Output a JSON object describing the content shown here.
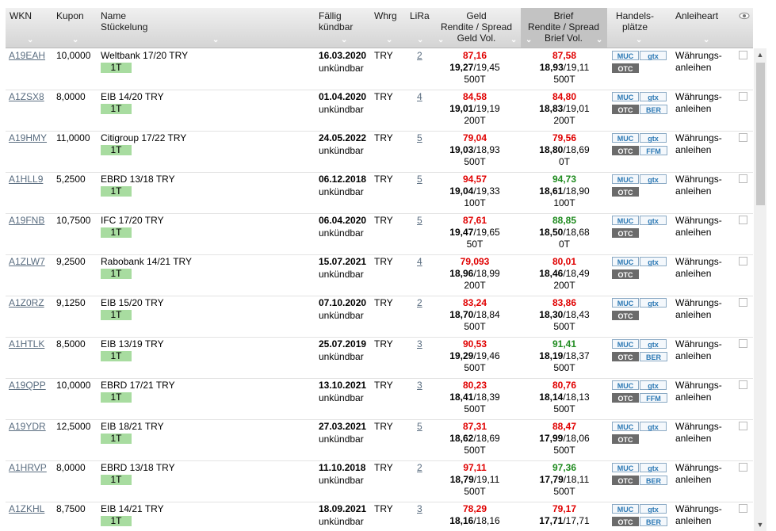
{
  "header": {
    "wkn": "WKN",
    "kupon": "Kupon",
    "name_l1": "Name",
    "name_l2": "Stückelung",
    "faellig_l1": "Fällig",
    "faellig_l2": "kündbar",
    "whrg": "Whrg",
    "lira": "LiRa",
    "geld_l1": "Geld",
    "geld_l2": "Rendite / Spread",
    "geld_l3": "Geld Vol.",
    "brief_l1": "Brief",
    "brief_l2": "Rendite / Spread",
    "brief_l3": "Brief Vol.",
    "handel_l1": "Handels-",
    "handel_l2": "plätze",
    "art": "Anleiheart",
    "chevron": "⌄",
    "sort_icon": "chevron-down-icon"
  },
  "colors": {
    "red": "#e00000",
    "green": "#1f8b1f",
    "badge": "#a8dca0",
    "header_active": "#c3c3c3"
  },
  "rows": [
    {
      "wkn": "A19EAH",
      "kupon": "10,0000",
      "name": "Weltbank 17/20 TRY",
      "stueck": "1T",
      "faellig": "16.03.2020",
      "kuend": "unkündbar",
      "whrg": "TRY",
      "lira": "2",
      "geld": "87,16",
      "geld_col": "red",
      "geld_r": "19,27",
      "geld_s": "/19,45",
      "geld_v": "500T",
      "brief": "87,58",
      "brief_col": "red",
      "brief_r": "18,93",
      "brief_s": "/19,11",
      "brief_v": "500T",
      "m1": "MUC",
      "m2": "gtx",
      "m3": "OTC",
      "m4": "",
      "art1": "Währungs-",
      "art2": "anleihen"
    },
    {
      "wkn": "A1ZSX8",
      "kupon": "8,0000",
      "name": "EIB 14/20 TRY",
      "stueck": "1T",
      "faellig": "01.04.2020",
      "kuend": "unkündbar",
      "whrg": "TRY",
      "lira": "4",
      "geld": "84,58",
      "geld_col": "red",
      "geld_r": "19,01",
      "geld_s": "/19,19",
      "geld_v": "200T",
      "brief": "84,80",
      "brief_col": "red",
      "brief_r": "18,83",
      "brief_s": "/19,01",
      "brief_v": "200T",
      "m1": "MUC",
      "m2": "gtx",
      "m3": "OTC",
      "m4": "BER",
      "art1": "Währungs-",
      "art2": "anleihen"
    },
    {
      "wkn": "A19HMY",
      "kupon": "11,0000",
      "name": "Citigroup 17/22 TRY",
      "stueck": "1T",
      "faellig": "24.05.2022",
      "kuend": "unkündbar",
      "whrg": "TRY",
      "lira": "5",
      "geld": "79,04",
      "geld_col": "red",
      "geld_r": "19,03",
      "geld_s": "/18,93",
      "geld_v": "500T",
      "brief": "79,56",
      "brief_col": "red",
      "brief_r": "18,80",
      "brief_s": "/18,69",
      "brief_v": "0T",
      "m1": "MUC",
      "m2": "gtx",
      "m3": "OTC",
      "m4": "FFM",
      "art1": "Währungs-",
      "art2": "anleihen"
    },
    {
      "wkn": "A1HLL9",
      "kupon": "5,2500",
      "name": "EBRD 13/18 TRY",
      "stueck": "1T",
      "faellig": "06.12.2018",
      "kuend": "unkündbar",
      "whrg": "TRY",
      "lira": "5",
      "geld": "94,57",
      "geld_col": "red",
      "geld_r": "19,04",
      "geld_s": "/19,33",
      "geld_v": "100T",
      "brief": "94,73",
      "brief_col": "green",
      "brief_r": "18,61",
      "brief_s": "/18,90",
      "brief_v": "100T",
      "m1": "MUC",
      "m2": "gtx",
      "m3": "OTC",
      "m4": "",
      "art1": "Währungs-",
      "art2": "anleihen"
    },
    {
      "wkn": "A19FNB",
      "kupon": "10,7500",
      "name": "IFC 17/20 TRY",
      "stueck": "1T",
      "faellig": "06.04.2020",
      "kuend": "unkündbar",
      "whrg": "TRY",
      "lira": "5",
      "geld": "87,61",
      "geld_col": "red",
      "geld_r": "19,47",
      "geld_s": "/19,65",
      "geld_v": "50T",
      "brief": "88,85",
      "brief_col": "green",
      "brief_r": "18,50",
      "brief_s": "/18,68",
      "brief_v": "0T",
      "m1": "MUC",
      "m2": "gtx",
      "m3": "OTC",
      "m4": "",
      "art1": "Währungs-",
      "art2": "anleihen"
    },
    {
      "wkn": "A1ZLW7",
      "kupon": "9,2500",
      "name": "Rabobank 14/21 TRY",
      "stueck": "1T",
      "faellig": "15.07.2021",
      "kuend": "unkündbar",
      "whrg": "TRY",
      "lira": "4",
      "geld": "79,093",
      "geld_col": "red",
      "geld_r": "18,96",
      "geld_s": "/18,99",
      "geld_v": "200T",
      "brief": "80,01",
      "brief_col": "red",
      "brief_r": "18,46",
      "brief_s": "/18,49",
      "brief_v": "200T",
      "m1": "MUC",
      "m2": "gtx",
      "m3": "OTC",
      "m4": "",
      "art1": "Währungs-",
      "art2": "anleihen"
    },
    {
      "wkn": "A1Z0RZ",
      "kupon": "9,1250",
      "name": "EIB 15/20 TRY",
      "stueck": "1T",
      "faellig": "07.10.2020",
      "kuend": "unkündbar",
      "whrg": "TRY",
      "lira": "2",
      "geld": "83,24",
      "geld_col": "red",
      "geld_r": "18,70",
      "geld_s": "/18,84",
      "geld_v": "500T",
      "brief": "83,86",
      "brief_col": "red",
      "brief_r": "18,30",
      "brief_s": "/18,43",
      "brief_v": "500T",
      "m1": "MUC",
      "m2": "gtx",
      "m3": "OTC",
      "m4": "",
      "art1": "Währungs-",
      "art2": "anleihen"
    },
    {
      "wkn": "A1HTLK",
      "kupon": "8,5000",
      "name": "EIB 13/19 TRY",
      "stueck": "1T",
      "faellig": "25.07.2019",
      "kuend": "unkündbar",
      "whrg": "TRY",
      "lira": "3",
      "geld": "90,53",
      "geld_col": "red",
      "geld_r": "19,29",
      "geld_s": "/19,46",
      "geld_v": "500T",
      "brief": "91,41",
      "brief_col": "green",
      "brief_r": "18,19",
      "brief_s": "/18,37",
      "brief_v": "500T",
      "m1": "MUC",
      "m2": "gtx",
      "m3": "OTC",
      "m4": "BER",
      "art1": "Währungs-",
      "art2": "anleihen"
    },
    {
      "wkn": "A19QPP",
      "kupon": "10,0000",
      "name": "EBRD 17/21 TRY",
      "stueck": "1T",
      "faellig": "13.10.2021",
      "kuend": "unkündbar",
      "whrg": "TRY",
      "lira": "3",
      "geld": "80,23",
      "geld_col": "red",
      "geld_r": "18,41",
      "geld_s": "/18,39",
      "geld_v": "500T",
      "brief": "80,76",
      "brief_col": "red",
      "brief_r": "18,14",
      "brief_s": "/18,13",
      "brief_v": "500T",
      "m1": "MUC",
      "m2": "gtx",
      "m3": "OTC",
      "m4": "FFM",
      "art1": "Währungs-",
      "art2": "anleihen"
    },
    {
      "wkn": "A19YDR",
      "kupon": "12,5000",
      "name": "EIB 18/21 TRY",
      "stueck": "1T",
      "faellig": "27.03.2021",
      "kuend": "unkündbar",
      "whrg": "TRY",
      "lira": "5",
      "geld": "87,31",
      "geld_col": "red",
      "geld_r": "18,62",
      "geld_s": "/18,69",
      "geld_v": "500T",
      "brief": "88,47",
      "brief_col": "red",
      "brief_r": "17,99",
      "brief_s": "/18,06",
      "brief_v": "500T",
      "m1": "MUC",
      "m2": "gtx",
      "m3": "OTC",
      "m4": "",
      "art1": "Währungs-",
      "art2": "anleihen"
    },
    {
      "wkn": "A1HRVP",
      "kupon": "8,0000",
      "name": "EBRD 13/18 TRY",
      "stueck": "1T",
      "faellig": "11.10.2018",
      "kuend": "unkündbar",
      "whrg": "TRY",
      "lira": "2",
      "geld": "97,11",
      "geld_col": "red",
      "geld_r": "18,79",
      "geld_s": "/19,11",
      "geld_v": "500T",
      "brief": "97,36",
      "brief_col": "green",
      "brief_r": "17,79",
      "brief_s": "/18,11",
      "brief_v": "500T",
      "m1": "MUC",
      "m2": "gtx",
      "m3": "OTC",
      "m4": "BER",
      "art1": "Währungs-",
      "art2": "anleihen"
    },
    {
      "wkn": "A1ZKHL",
      "kupon": "8,7500",
      "name": "EIB 14/21 TRY",
      "stueck": "1T",
      "faellig": "18.09.2021",
      "kuend": "unkündbar",
      "whrg": "TRY",
      "lira": "3",
      "geld": "78,29",
      "geld_col": "red",
      "geld_r": "18,16",
      "geld_s": "/18,16",
      "geld_v": "",
      "brief": "79,17",
      "brief_col": "red",
      "brief_r": "17,71",
      "brief_s": "/17,71",
      "brief_v": "",
      "m1": "MUC",
      "m2": "gtx",
      "m3": "OTC",
      "m4": "BER",
      "art1": "Währungs-",
      "art2": "anleihen"
    }
  ]
}
